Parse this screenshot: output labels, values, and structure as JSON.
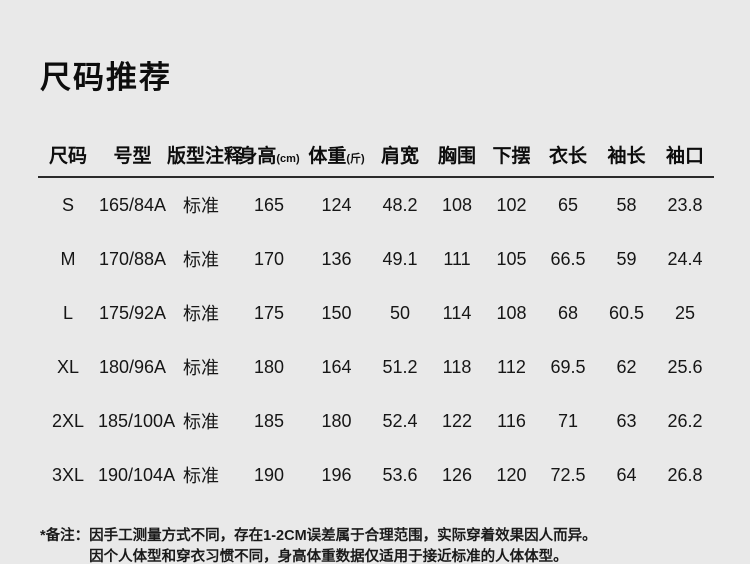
{
  "page": {
    "title": "尺码推荐"
  },
  "theme": {
    "background": "#e9e9e9",
    "text": "#141414",
    "divider": "#2b2b2b"
  },
  "table": {
    "headers": [
      {
        "label": "尺码",
        "unit": ""
      },
      {
        "label": "号型",
        "unit": ""
      },
      {
        "label": "版型注释",
        "unit": ""
      },
      {
        "label": "身高",
        "unit": "(cm)"
      },
      {
        "label": "体重",
        "unit": "(斤)"
      },
      {
        "label": "肩宽",
        "unit": ""
      },
      {
        "label": "胸围",
        "unit": ""
      },
      {
        "label": "下摆",
        "unit": ""
      },
      {
        "label": "衣长",
        "unit": ""
      },
      {
        "label": "袖长",
        "unit": ""
      },
      {
        "label": "袖口",
        "unit": ""
      }
    ],
    "rows": [
      {
        "cells": [
          "S",
          "165/84A",
          "标准",
          "165",
          "124",
          "48.2",
          "108",
          "102",
          "65",
          "58",
          "23.8"
        ]
      },
      {
        "cells": [
          "M",
          "170/88A",
          "标准",
          "170",
          "136",
          "49.1",
          "111",
          "105",
          "66.5",
          "59",
          "24.4"
        ]
      },
      {
        "cells": [
          "L",
          "175/92A",
          "标准",
          "175",
          "150",
          "50",
          "114",
          "108",
          "68",
          "60.5",
          "25"
        ]
      },
      {
        "cells": [
          "XL",
          "180/96A",
          "标准",
          "180",
          "164",
          "51.2",
          "118",
          "112",
          "69.5",
          "62",
          "25.6"
        ]
      },
      {
        "cells": [
          "2XL",
          "185/100A",
          "标准",
          "185",
          "180",
          "52.4",
          "122",
          "116",
          "71",
          "63",
          "26.2"
        ]
      },
      {
        "cells": [
          "3XL",
          "190/104A",
          "标准",
          "190",
          "196",
          "53.6",
          "126",
          "120",
          "72.5",
          "64",
          "26.8"
        ]
      }
    ]
  },
  "note": {
    "label": "*备注：",
    "line1": "因手工测量方式不同，存在1-2CM误差属于合理范围，实际穿着效果因人而异。",
    "line2": "因个人体型和穿衣习惯不同，身高体重数据仅适用于接近标准的人体体型。"
  }
}
